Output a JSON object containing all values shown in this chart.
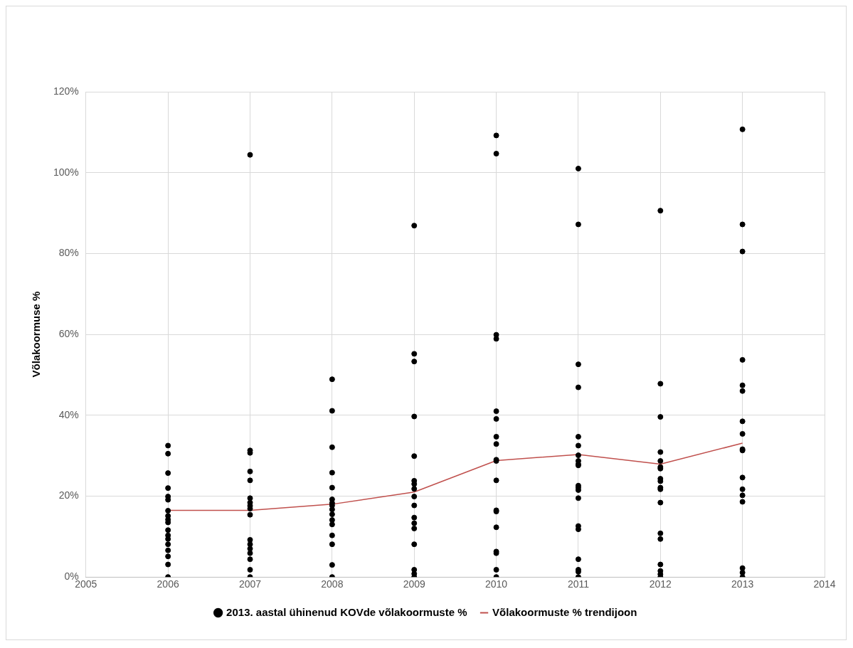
{
  "chart_data": {
    "type": "scatter",
    "ylabel": "Võlakoormuse %",
    "xlim": [
      2005,
      2014
    ],
    "xticks": [
      2005,
      2006,
      2007,
      2008,
      2009,
      2010,
      2011,
      2012,
      2013,
      2014
    ],
    "ylim": [
      0,
      120
    ],
    "yticks": [
      {
        "value": 0,
        "label": "0%"
      },
      {
        "value": 20,
        "label": "20%"
      },
      {
        "value": 40,
        "label": "40%"
      },
      {
        "value": 60,
        "label": "60%"
      },
      {
        "value": 80,
        "label": "80%"
      },
      {
        "value": 100,
        "label": "100%"
      },
      {
        "value": 120,
        "label": "120%"
      }
    ],
    "grid": true,
    "legend": "bottom",
    "series": [
      {
        "name": "2013. aastal ühinenud KOVde võlakoormuste %",
        "marker": "circle",
        "color": "#000000",
        "x": [
          2006,
          2006,
          2006,
          2006,
          2006,
          2006,
          2006,
          2006,
          2006,
          2006,
          2006,
          2006,
          2006,
          2006,
          2006,
          2006,
          2006,
          2006,
          2007,
          2007,
          2007,
          2007,
          2007,
          2007,
          2007,
          2007,
          2007,
          2007,
          2007,
          2007,
          2007,
          2007,
          2007,
          2007,
          2007,
          2008,
          2008,
          2008,
          2008,
          2008,
          2008,
          2008,
          2008,
          2008,
          2008,
          2008,
          2008,
          2008,
          2008,
          2008,
          2008,
          2009,
          2009,
          2009,
          2009,
          2009,
          2009,
          2009,
          2009,
          2009,
          2009,
          2009,
          2009,
          2009,
          2009,
          2009,
          2009,
          2009,
          2010,
          2010,
          2010,
          2010,
          2010,
          2010,
          2010,
          2010,
          2010,
          2010,
          2010,
          2010,
          2010,
          2010,
          2010,
          2010,
          2010,
          2010,
          2011,
          2011,
          2011,
          2011,
          2011,
          2011,
          2011,
          2011,
          2011,
          2011,
          2011,
          2011,
          2011,
          2011,
          2011,
          2011,
          2011,
          2011,
          2011,
          2011,
          2012,
          2012,
          2012,
          2012,
          2012,
          2012,
          2012,
          2012,
          2012,
          2012,
          2012,
          2012,
          2012,
          2012,
          2012,
          2012,
          2012,
          2012,
          2013,
          2013,
          2013,
          2013,
          2013,
          2013,
          2013,
          2013,
          2013,
          2013,
          2013,
          2013,
          2013,
          2013,
          2013,
          2013,
          2013
        ],
        "values": [
          32.5,
          30.5,
          25.7,
          22,
          19.9,
          19.1,
          16.4,
          15.1,
          14.2,
          13.5,
          11.6,
          10.3,
          9.4,
          8.1,
          6.6,
          5.1,
          3.1,
          0,
          104.4,
          31.3,
          30.7,
          26.1,
          23.9,
          19.5,
          18.4,
          17.6,
          16.9,
          15.4,
          9.2,
          8.1,
          7,
          5.9,
          4.4,
          1.8,
          0,
          48.9,
          41.1,
          32.1,
          25.8,
          22.1,
          19.2,
          18.3,
          17.7,
          16.7,
          15.5,
          14.1,
          13,
          10.3,
          8.1,
          3,
          0,
          86.9,
          55.2,
          53.3,
          39.7,
          29.9,
          23.8,
          23,
          21.8,
          19.9,
          17.7,
          14.7,
          13.3,
          12,
          8.1,
          1.8,
          0.8,
          0,
          109.2,
          104.7,
          59.9,
          58.9,
          41,
          39.1,
          34.7,
          32.9,
          29,
          28.7,
          23.9,
          16.5,
          16.2,
          12.3,
          6.3,
          5.9,
          1.8,
          0,
          101,
          87.2,
          52.6,
          46.9,
          34.7,
          32.5,
          30.1,
          28.7,
          27.9,
          27.6,
          22.6,
          22.1,
          21.5,
          19.5,
          12.6,
          11.8,
          4.4,
          1.8,
          1.3,
          0,
          90.6,
          47.8,
          39.6,
          30.9,
          28.7,
          27.2,
          26.8,
          24.3,
          23.7,
          22.1,
          21.7,
          18.4,
          10.8,
          9.4,
          3.1,
          1.5,
          0.7,
          0,
          110.7,
          87.2,
          80.5,
          53.7,
          47.4,
          46,
          38.5,
          35.4,
          31.6,
          31.3,
          24.6,
          21.7,
          20.2,
          18.6,
          2.2,
          1.1,
          0
        ]
      },
      {
        "name": "Võlakoormuste % trendijoon",
        "type": "line",
        "marker": "none",
        "line_style": "solid",
        "color": "#c0504d",
        "x": [
          2006,
          2007,
          2008,
          2009,
          2010,
          2011,
          2012,
          2013
        ],
        "values": [
          16.5,
          16.5,
          18,
          21,
          28.8,
          30.3,
          27.9,
          33.1
        ]
      }
    ]
  }
}
